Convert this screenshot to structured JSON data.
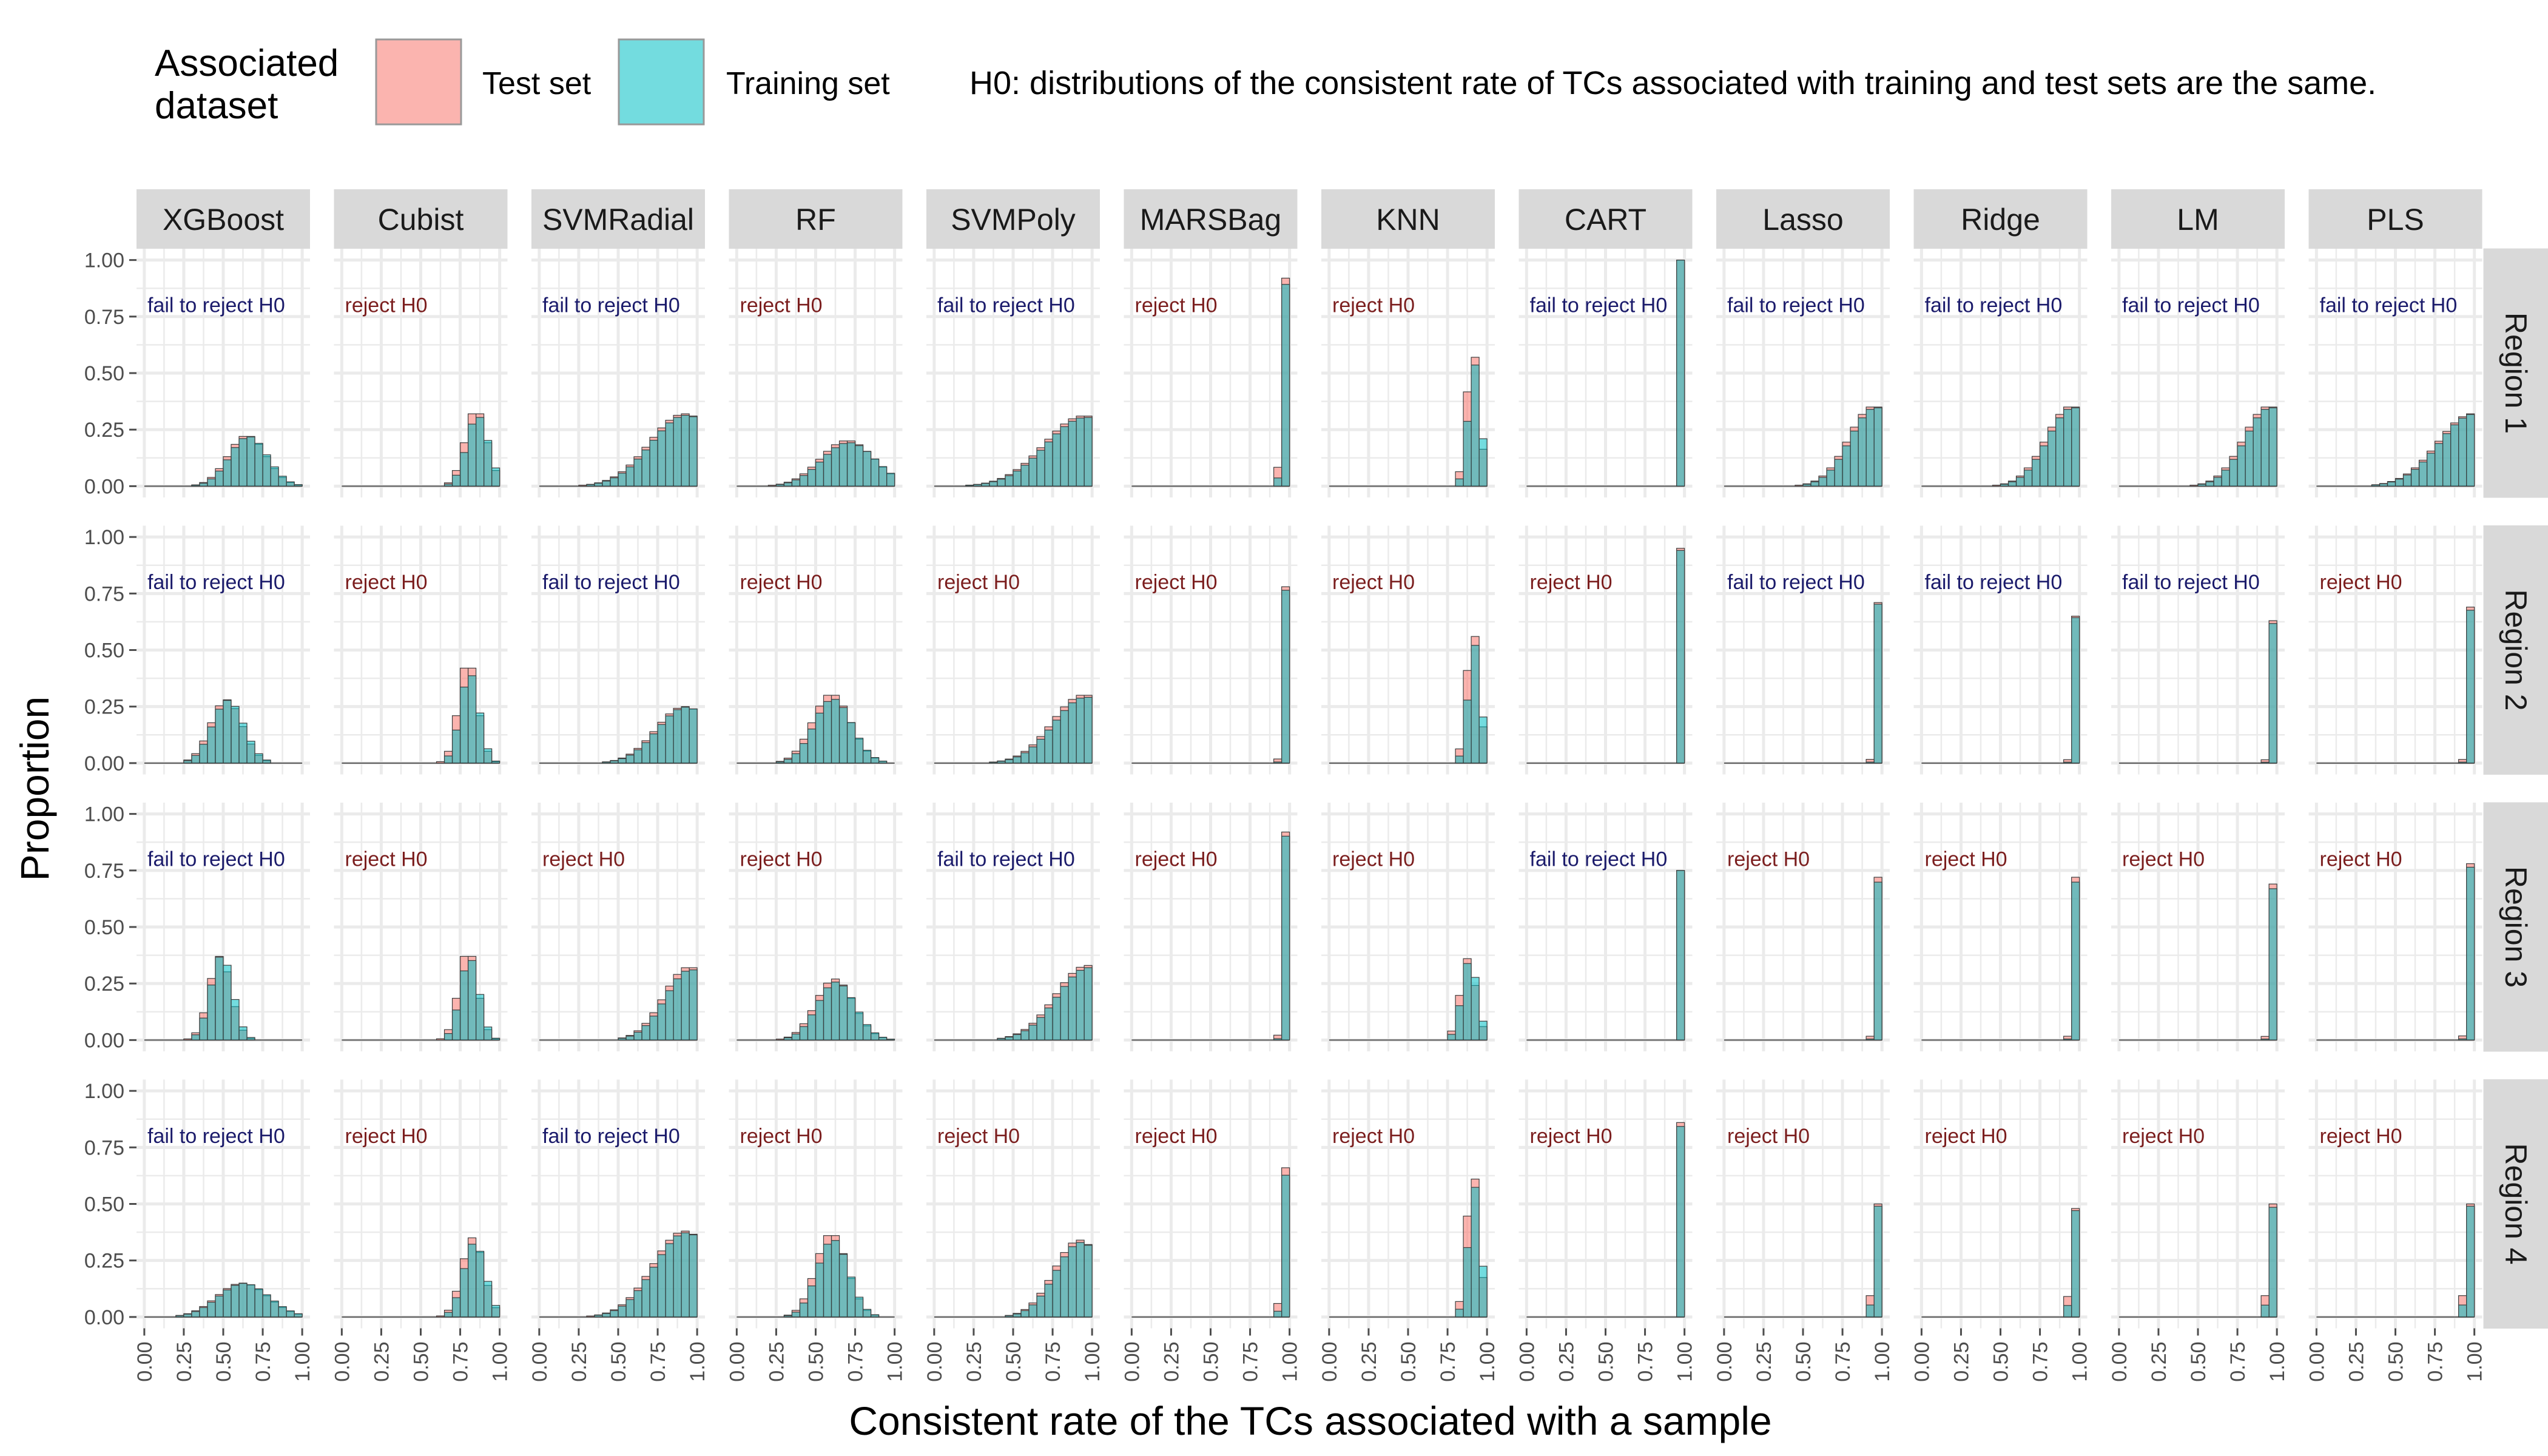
{
  "legend": {
    "title_lines": [
      "Associated",
      "dataset"
    ],
    "items": [
      {
        "label": "Test set",
        "color": "#F8766D"
      },
      {
        "label": "Training set",
        "color": "#00BFC4"
      }
    ],
    "note": "H0: distributions of the consistent rate of TCs associated with training and test sets are the same."
  },
  "chart_data": {
    "type": "bar",
    "subtype": "faceted-overlapping-histogram",
    "xlabel": "Consistent rate of the TCs associated with a sample",
    "ylabel": "Proportion",
    "xlim": [
      0,
      1
    ],
    "ylim": [
      0,
      1
    ],
    "x_ticks": [
      "0.00",
      "0.25",
      "0.50",
      "0.75",
      "1.00"
    ],
    "y_ticks": [
      "0.00",
      "0.25",
      "0.50",
      "0.75",
      "1.00"
    ],
    "grid": true,
    "legend_position": "top",
    "columns": [
      "XGBoost",
      "Cubist",
      "SVMRadial",
      "RF",
      "SVMPoly",
      "MARSBag",
      "KNN",
      "CART",
      "Lasso",
      "Ridge",
      "LM",
      "PLS"
    ],
    "rows": [
      "Region 1",
      "Region 2",
      "Region 3",
      "Region 4"
    ],
    "series_colors": {
      "Test set": "#F8766D",
      "Training set": "#00BFC4"
    },
    "verdict_colors": {
      "fail to reject H0": "#1b1b6b",
      "reject H0": "#7b1e1e"
    },
    "panels": [
      [
        {
          "verdict": "fail to reject H0",
          "peak": 0.65,
          "spread": 0.12,
          "max": 0.22,
          "diff": 0.01
        },
        {
          "verdict": "reject H0",
          "peak": 0.85,
          "spread": 0.07,
          "max": 0.32,
          "diff": 0.05
        },
        {
          "verdict": "fail to reject H0",
          "peak": 0.92,
          "spread": 0.22,
          "max": 0.32,
          "diff": 0.02
        },
        {
          "verdict": "reject H0",
          "peak": 0.7,
          "spread": 0.17,
          "max": 0.2,
          "diff": 0.04
        },
        {
          "verdict": "fail to reject H0",
          "peak": 0.95,
          "spread": 0.25,
          "max": 0.31,
          "diff": 0.02
        },
        {
          "verdict": "reject H0",
          "peak": 0.98,
          "spread": 0.025,
          "max": 0.92,
          "diff": 0.03
        },
        {
          "verdict": "reject H0",
          "peak": 0.91,
          "spread": 0.04,
          "max": 0.57,
          "diff": 0.06
        },
        {
          "verdict": "fail to reject H0",
          "peak": 0.99,
          "spread": 0.01,
          "max": 1.0,
          "diff": 0.0
        },
        {
          "verdict": "fail to reject H0",
          "peak": 0.95,
          "spread": 0.16,
          "max": 0.35,
          "diff": 0.01
        },
        {
          "verdict": "fail to reject H0",
          "peak": 0.95,
          "spread": 0.16,
          "max": 0.35,
          "diff": 0.01
        },
        {
          "verdict": "fail to reject H0",
          "peak": 0.95,
          "spread": 0.16,
          "max": 0.35,
          "diff": 0.01
        },
        {
          "verdict": "fail to reject H0",
          "peak": 0.99,
          "spread": 0.22,
          "max": 0.32,
          "diff": 0.01
        }
      ],
      [
        {
          "verdict": "fail to reject H0",
          "peak": 0.52,
          "spread": 0.1,
          "max": 0.28,
          "diff": 0.01
        },
        {
          "verdict": "reject H0",
          "peak": 0.8,
          "spread": 0.06,
          "max": 0.42,
          "diff": 0.08
        },
        {
          "verdict": "fail to reject H0",
          "peak": 0.92,
          "spread": 0.18,
          "max": 0.25,
          "diff": 0.01
        },
        {
          "verdict": "reject H0",
          "peak": 0.6,
          "spread": 0.12,
          "max": 0.3,
          "diff": 0.06
        },
        {
          "verdict": "reject H0",
          "peak": 0.95,
          "spread": 0.2,
          "max": 0.3,
          "diff": 0.03
        },
        {
          "verdict": "reject H0",
          "peak": 0.98,
          "spread": 0.02,
          "max": 0.78,
          "diff": 0.02
        },
        {
          "verdict": "reject H0",
          "peak": 0.91,
          "spread": 0.04,
          "max": 0.56,
          "diff": 0.07
        },
        {
          "verdict": "reject H0",
          "peak": 0.99,
          "spread": 0.01,
          "max": 0.95,
          "diff": 0.01
        },
        {
          "verdict": "fail to reject H0",
          "peak": 0.98,
          "spread": 0.02,
          "max": 0.71,
          "diff": 0.01
        },
        {
          "verdict": "fail to reject H0",
          "peak": 0.98,
          "spread": 0.02,
          "max": 0.65,
          "diff": 0.01
        },
        {
          "verdict": "fail to reject H0",
          "peak": 0.98,
          "spread": 0.02,
          "max": 0.63,
          "diff": 0.02
        },
        {
          "verdict": "reject H0",
          "peak": 0.98,
          "spread": 0.02,
          "max": 0.69,
          "diff": 0.02
        }
      ],
      [
        {
          "verdict": "fail to reject H0",
          "peak": 0.48,
          "spread": 0.07,
          "max": 0.37,
          "diff": 0.01
        },
        {
          "verdict": "reject H0",
          "peak": 0.8,
          "spread": 0.06,
          "max": 0.37,
          "diff": 0.05
        },
        {
          "verdict": "reject H0",
          "peak": 0.95,
          "spread": 0.16,
          "max": 0.32,
          "diff": 0.03
        },
        {
          "verdict": "reject H0",
          "peak": 0.62,
          "spread": 0.12,
          "max": 0.27,
          "diff": 0.05
        },
        {
          "verdict": "fail to reject H0",
          "peak": 0.97,
          "spread": 0.2,
          "max": 0.33,
          "diff": 0.03
        },
        {
          "verdict": "reject H0",
          "peak": 0.98,
          "spread": 0.02,
          "max": 0.92,
          "diff": 0.02
        },
        {
          "verdict": "reject H0",
          "peak": 0.88,
          "spread": 0.05,
          "max": 0.36,
          "diff": 0.06
        },
        {
          "verdict": "fail to reject H0",
          "peak": 0.99,
          "spread": 0.015,
          "max": 0.75,
          "diff": 0.0
        },
        {
          "verdict": "reject H0",
          "peak": 0.98,
          "spread": 0.02,
          "max": 0.72,
          "diff": 0.03
        },
        {
          "verdict": "reject H0",
          "peak": 0.98,
          "spread": 0.02,
          "max": 0.72,
          "diff": 0.03
        },
        {
          "verdict": "reject H0",
          "peak": 0.98,
          "spread": 0.02,
          "max": 0.69,
          "diff": 0.03
        },
        {
          "verdict": "reject H0",
          "peak": 0.98,
          "spread": 0.02,
          "max": 0.78,
          "diff": 0.02
        }
      ],
      [
        {
          "verdict": "fail to reject H0",
          "peak": 0.62,
          "spread": 0.16,
          "max": 0.15,
          "diff": 0.01
        },
        {
          "verdict": "reject H0",
          "peak": 0.83,
          "spread": 0.07,
          "max": 0.35,
          "diff": 0.08
        },
        {
          "verdict": "fail to reject H0",
          "peak": 0.92,
          "spread": 0.2,
          "max": 0.38,
          "diff": 0.02
        },
        {
          "verdict": "reject H0",
          "peak": 0.6,
          "spread": 0.1,
          "max": 0.36,
          "diff": 0.06
        },
        {
          "verdict": "reject H0",
          "peak": 0.92,
          "spread": 0.16,
          "max": 0.34,
          "diff": 0.03
        },
        {
          "verdict": "reject H0",
          "peak": 0.98,
          "spread": 0.025,
          "max": 0.66,
          "diff": 0.05
        },
        {
          "verdict": "reject H0",
          "peak": 0.91,
          "spread": 0.04,
          "max": 0.61,
          "diff": 0.06
        },
        {
          "verdict": "reject H0",
          "peak": 0.99,
          "spread": 0.015,
          "max": 0.86,
          "diff": 0.02
        },
        {
          "verdict": "reject H0",
          "peak": 0.98,
          "spread": 0.03,
          "max": 0.5,
          "diff": 0.02
        },
        {
          "verdict": "reject H0",
          "peak": 0.98,
          "spread": 0.03,
          "max": 0.48,
          "diff": 0.02
        },
        {
          "verdict": "reject H0",
          "peak": 0.98,
          "spread": 0.03,
          "max": 0.5,
          "diff": 0.03
        },
        {
          "verdict": "reject H0",
          "peak": 0.98,
          "spread": 0.03,
          "max": 0.5,
          "diff": 0.02
        }
      ]
    ]
  }
}
